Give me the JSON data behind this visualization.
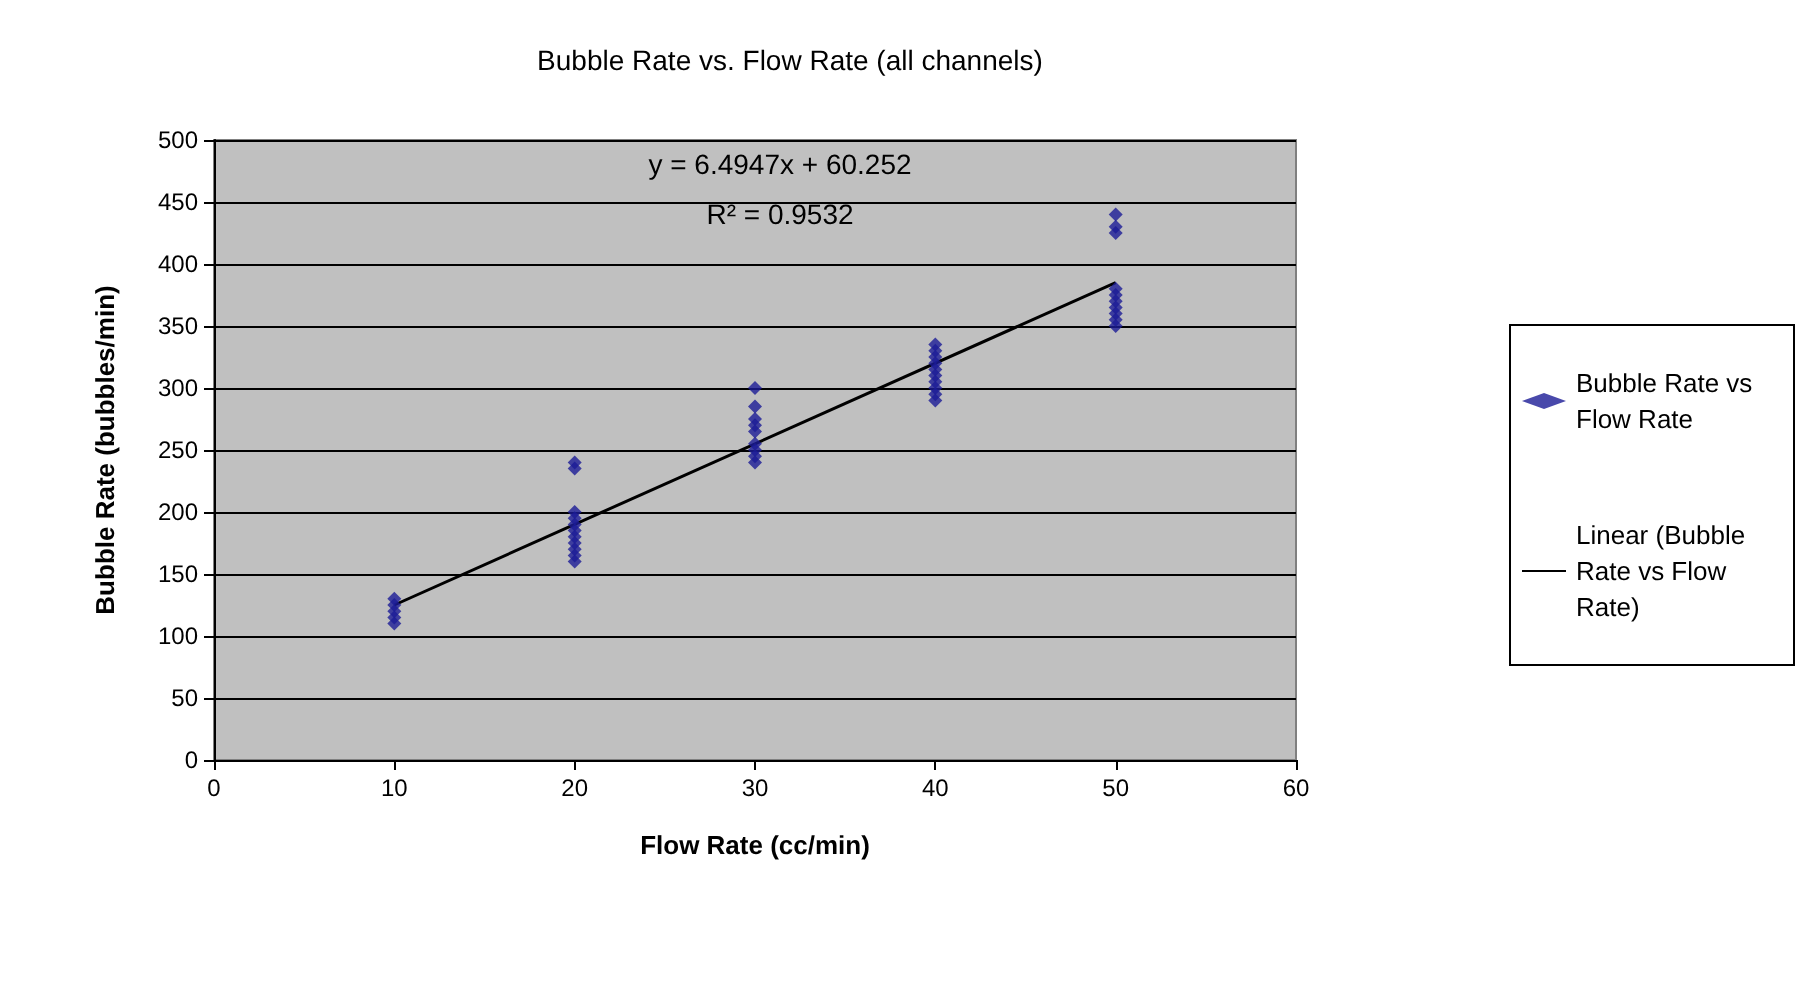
{
  "chart_data": {
    "type": "scatter",
    "title": "Bubble Rate vs. Flow Rate (all channels)",
    "xlabel": "Flow Rate (cc/min)",
    "ylabel": "Bubble Rate (bubbles/min)",
    "annotations": [
      "y = 6.4947x + 60.252",
      "R² = 0.9532"
    ],
    "series": [
      {
        "name": "Bubble Rate vs Flow Rate",
        "color": "#1c1c96",
        "marker": "diamond",
        "x": [
          10,
          10,
          10,
          10,
          10,
          20,
          20,
          20,
          20,
          20,
          20,
          20,
          20,
          20,
          20,
          20,
          30,
          30,
          30,
          30,
          30,
          30,
          30,
          30,
          30,
          40,
          40,
          40,
          40,
          40,
          40,
          40,
          40,
          40,
          40,
          50,
          50,
          50,
          50,
          50,
          50,
          50,
          50,
          50,
          50
        ],
        "values": [
          110,
          115,
          120,
          125,
          130,
          235,
          240,
          200,
          195,
          190,
          185,
          180,
          175,
          170,
          165,
          160,
          300,
          285,
          275,
          270,
          265,
          255,
          250,
          245,
          240,
          335,
          330,
          325,
          320,
          315,
          310,
          305,
          300,
          295,
          290,
          440,
          430,
          425,
          380,
          375,
          370,
          365,
          360,
          355,
          350
        ]
      },
      {
        "name": "Linear (Bubble Rate vs Flow Rate)",
        "color": "#000000",
        "type": "line",
        "marker": "none",
        "line_style": "solid",
        "x": [
          10,
          50
        ],
        "values": [
          125,
          385
        ]
      }
    ],
    "xlim": [
      0,
      60
    ],
    "xticks": [
      0,
      10,
      20,
      30,
      40,
      50,
      60
    ],
    "ylim": [
      0,
      500
    ],
    "yticks": [
      0,
      50,
      100,
      150,
      200,
      250,
      300,
      350,
      400,
      450,
      500
    ],
    "grid": "y",
    "legend": "right"
  }
}
